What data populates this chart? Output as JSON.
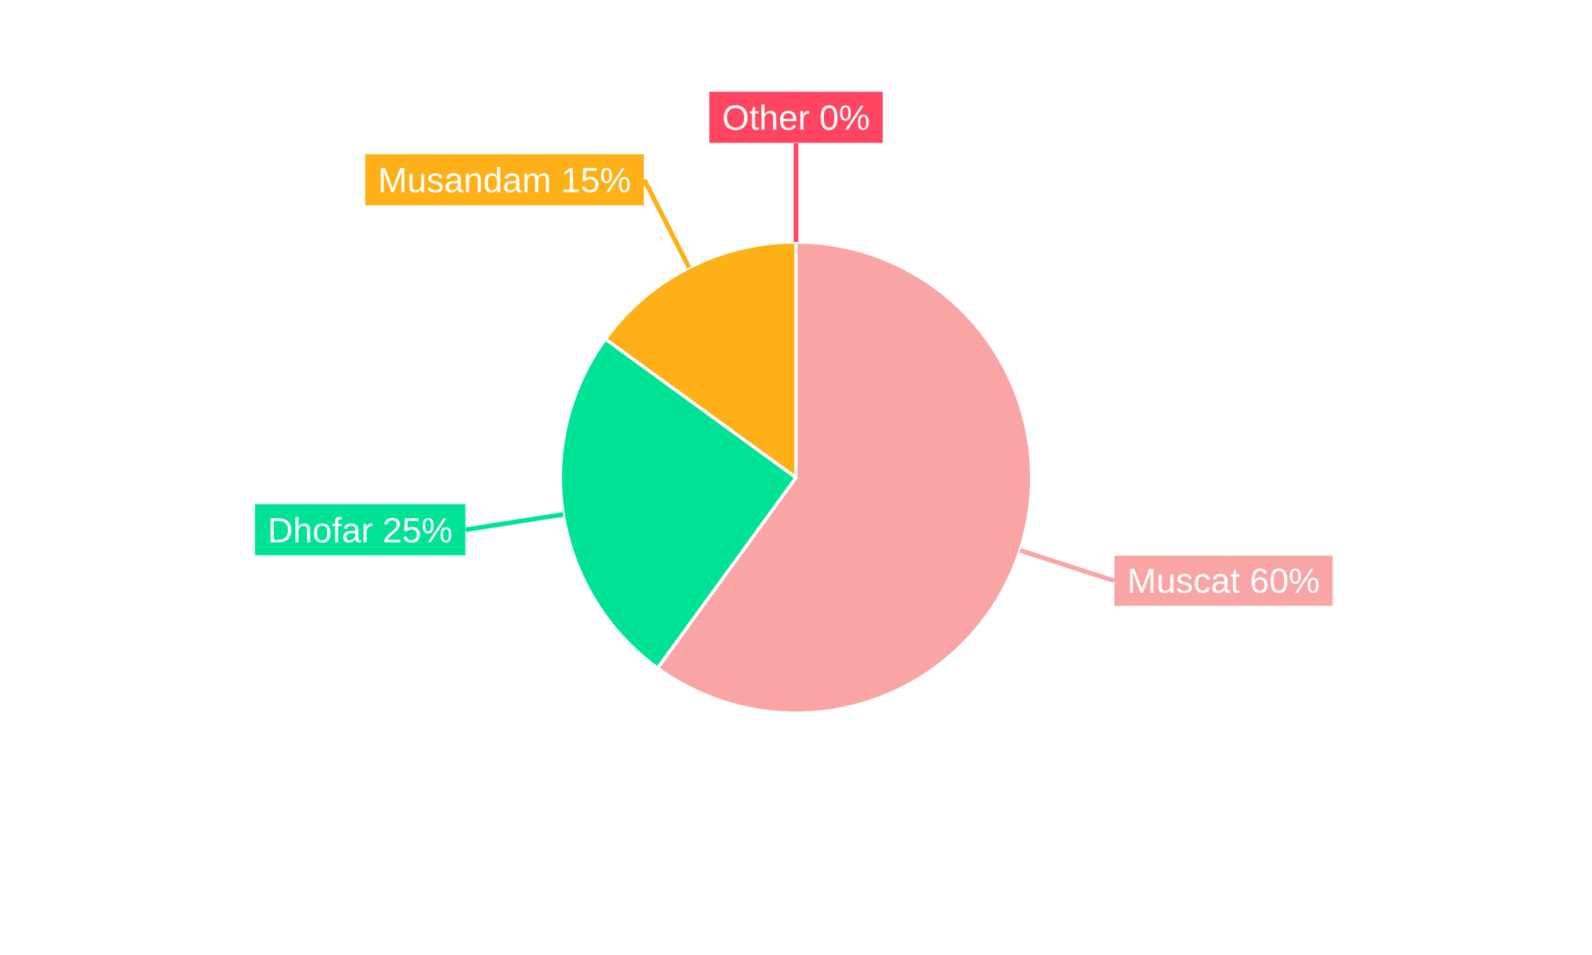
{
  "chart_data": {
    "type": "pie",
    "categories": [
      "Muscat",
      "Dhofar",
      "Musandam",
      "Other"
    ],
    "values": [
      60,
      25,
      15,
      0
    ],
    "value_labels": [
      "60%",
      "25%",
      "15%",
      "0%"
    ],
    "colors": [
      "#f9a5a5",
      "#00e396",
      "#feb019",
      "#ff4560"
    ],
    "legend": false
  }
}
